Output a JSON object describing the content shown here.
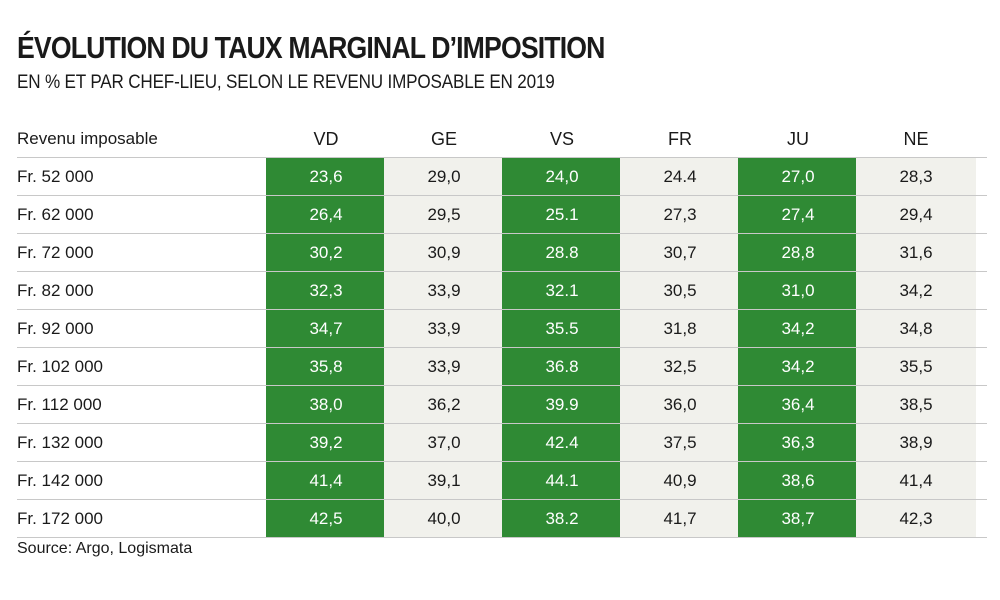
{
  "title": "ÉVOLUTION DU TAUX MARGINAL D’IMPOSITION",
  "subtitle": "EN % ET PAR CHEF-LIEU, SELON LE REVENU IMPOSABLE EN 2019",
  "source": "Source: Argo, Logismata",
  "colors": {
    "highlight": "#2f8a34",
    "cell": "#f1f1ec",
    "rule": "#c8c8c8"
  },
  "chart_data": {
    "type": "table",
    "title": "ÉVOLUTION DU TAUX MARGINAL D’IMPOSITION",
    "subtitle": "EN % ET PAR CHEF-LIEU, SELON LE REVENU IMPOSABLE EN 2019",
    "row_header": "Revenu imposable",
    "columns": [
      "VD",
      "GE",
      "VS",
      "FR",
      "JU",
      "NE"
    ],
    "highlighted_columns": [
      "VD",
      "VS",
      "JU"
    ],
    "rows": [
      {
        "label": "Fr. 52 000",
        "values": [
          "23,6",
          "29,0",
          "24,0",
          "24.4",
          "27,0",
          "28,3"
        ]
      },
      {
        "label": "Fr. 62 000",
        "values": [
          "26,4",
          "29,5",
          "25.1",
          "27,3",
          "27,4",
          "29,4"
        ]
      },
      {
        "label": "Fr. 72 000",
        "values": [
          "30,2",
          "30,9",
          "28.8",
          "30,7",
          "28,8",
          "31,6"
        ]
      },
      {
        "label": "Fr. 82 000",
        "values": [
          "32,3",
          "33,9",
          "32.1",
          "30,5",
          "31,0",
          "34,2"
        ]
      },
      {
        "label": "Fr. 92 000",
        "values": [
          "34,7",
          "33,9",
          "35.5",
          "31,8",
          "34,2",
          "34,8"
        ]
      },
      {
        "label": "Fr. 102 000",
        "values": [
          "35,8",
          "33,9",
          "36.8",
          "32,5",
          "34,2",
          "35,5"
        ]
      },
      {
        "label": "Fr. 112 000",
        "values": [
          "38,0",
          "36,2",
          "39.9",
          "36,0",
          "36,4",
          "38,5"
        ]
      },
      {
        "label": "Fr. 132 000",
        "values": [
          "39,2",
          "37,0",
          "42.4",
          "37,5",
          "36,3",
          "38,9"
        ]
      },
      {
        "label": "Fr. 142 000",
        "values": [
          "41,4",
          "39,1",
          "44.1",
          "40,9",
          "38,6",
          "41,4"
        ]
      },
      {
        "label": "Fr. 172 000",
        "values": [
          "42,5",
          "40,0",
          "38.2",
          "41,7",
          "38,7",
          "42,3"
        ]
      }
    ]
  }
}
